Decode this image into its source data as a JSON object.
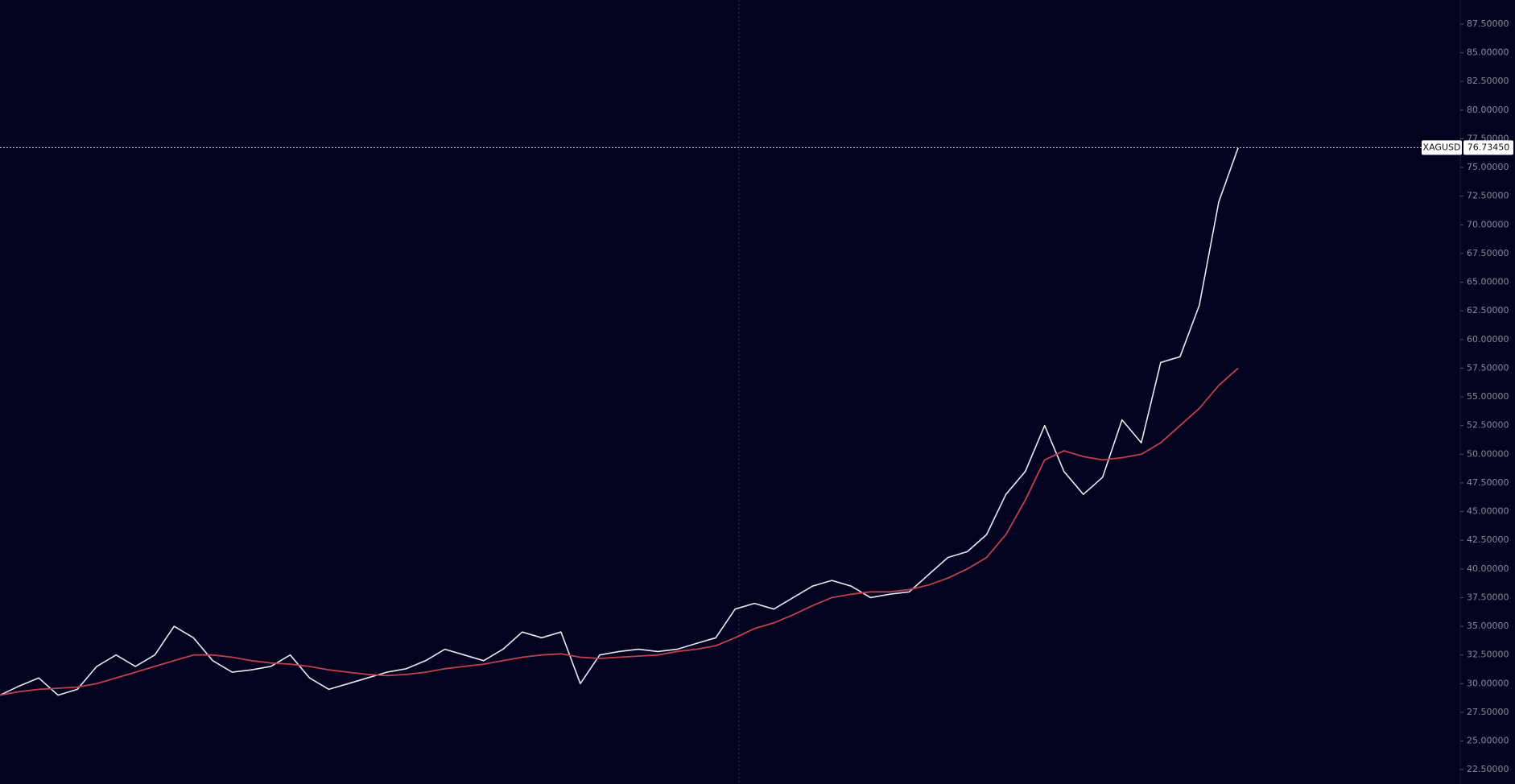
{
  "chart_data": {
    "type": "line",
    "symbol": "XAGUSD",
    "last_price": {
      "value": 76.7345,
      "label": "76.73450"
    },
    "ylim": [
      21.25,
      89.6
    ],
    "yticks": [
      {
        "value": 22.5,
        "label": "22.50000"
      },
      {
        "value": 25,
        "label": "25.00000"
      },
      {
        "value": 27.5,
        "label": "27.50000"
      },
      {
        "value": 30,
        "label": "30.00000"
      },
      {
        "value": 32.5,
        "label": "32.50000"
      },
      {
        "value": 35,
        "label": "35.00000"
      },
      {
        "value": 37.5,
        "label": "37.50000"
      },
      {
        "value": 40,
        "label": "40.00000"
      },
      {
        "value": 42.5,
        "label": "42.50000"
      },
      {
        "value": 45,
        "label": "45.00000"
      },
      {
        "value": 47.5,
        "label": "47.50000"
      },
      {
        "value": 50,
        "label": "50.00000"
      },
      {
        "value": 52.5,
        "label": "52.50000"
      },
      {
        "value": 55,
        "label": "55.00000"
      },
      {
        "value": 57.5,
        "label": "57.50000"
      },
      {
        "value": 60,
        "label": "60.00000"
      },
      {
        "value": 62.5,
        "label": "62.50000"
      },
      {
        "value": 65,
        "label": "65.00000"
      },
      {
        "value": 67.5,
        "label": "67.50000"
      },
      {
        "value": 70,
        "label": "70.00000"
      },
      {
        "value": 72.5,
        "label": "72.50000"
      },
      {
        "value": 75,
        "label": "75.00000"
      },
      {
        "value": 77.5,
        "label": "77.50000"
      },
      {
        "value": 80,
        "label": "80.00000"
      },
      {
        "value": 82.5,
        "label": "82.50000"
      },
      {
        "value": 85,
        "label": "85.00000"
      },
      {
        "value": 87.5,
        "label": "87.50000"
      }
    ],
    "series": [
      {
        "color": "#e8e8f0",
        "values": [
          29,
          29.8,
          30.5,
          29,
          29.5,
          31.5,
          32.5,
          31.5,
          32.5,
          35,
          34,
          32,
          31,
          31.2,
          31.5,
          32.5,
          30.5,
          29.5,
          30,
          30.5,
          31,
          31.3,
          32,
          33,
          32.5,
          32,
          33,
          34.5,
          34,
          34.5,
          30,
          32.5,
          32.8,
          33,
          32.8,
          33,
          33.5,
          34,
          36.5,
          37,
          36.5,
          37.5,
          38.5,
          39,
          38.5,
          37.5,
          37.8,
          38,
          39.5,
          41,
          41.5,
          43,
          46.5,
          48.5,
          52.5,
          48.5,
          46.5,
          48,
          53,
          51,
          58,
          58.5,
          63,
          72,
          76.7
        ]
      },
      {
        "color": "#c0404f",
        "values": [
          29,
          29.3,
          29.5,
          29.6,
          29.7,
          30,
          30.5,
          31,
          31.5,
          32,
          32.5,
          32.5,
          32.3,
          32,
          31.8,
          31.7,
          31.5,
          31.2,
          31,
          30.8,
          30.7,
          30.8,
          31,
          31.3,
          31.5,
          31.7,
          32,
          32.3,
          32.5,
          32.6,
          32.3,
          32.2,
          32.3,
          32.4,
          32.5,
          32.8,
          33,
          33.3,
          34,
          34.8,
          35.3,
          36,
          36.8,
          37.5,
          37.8,
          38,
          38,
          38.2,
          38.6,
          39.2,
          40,
          41,
          43,
          46,
          49.5,
          50.3,
          49.8,
          49.5,
          49.7,
          50,
          51,
          52.5,
          54,
          56,
          57.5
        ]
      }
    ]
  }
}
